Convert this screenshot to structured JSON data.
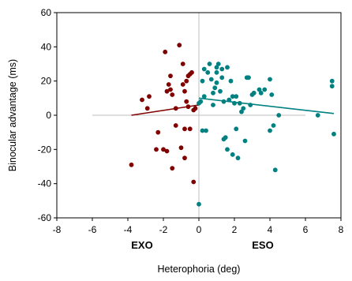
{
  "chart_data": {
    "type": "scatter",
    "title": "",
    "xlabel": "Heterophoria (deg)",
    "ylabel": "Binocular advantage (ms)",
    "xlim": [
      -8,
      8
    ],
    "ylim": [
      -60,
      60
    ],
    "xticks": [
      -8,
      -6,
      -4,
      -2,
      0,
      2,
      4,
      6,
      8
    ],
    "yticks": [
      -60,
      -40,
      -20,
      0,
      20,
      40,
      60
    ],
    "grid": false,
    "reference_lines": {
      "x": 0,
      "y": 0,
      "y_line_range": [
        -6,
        6
      ],
      "color": "#bfbfbf"
    },
    "annotations": [
      {
        "text": "EXO",
        "x": -3.2,
        "y": -78
      },
      {
        "text": "ESO",
        "x": 3.6,
        "y": -78
      }
    ],
    "series": [
      {
        "color": "#800000",
        "points": [
          [
            -3.8,
            -29
          ],
          [
            -3.2,
            9
          ],
          [
            -2.9,
            4
          ],
          [
            -2.8,
            11
          ],
          [
            -2.4,
            -20
          ],
          [
            -2.3,
            -10
          ],
          [
            -2.0,
            -20
          ],
          [
            -1.9,
            37
          ],
          [
            -1.8,
            -21
          ],
          [
            -1.8,
            14
          ],
          [
            -1.7,
            18
          ],
          [
            -1.6,
            15
          ],
          [
            -1.6,
            23
          ],
          [
            -1.5,
            12
          ],
          [
            -1.5,
            -31
          ],
          [
            -1.3,
            -6
          ],
          [
            -1.3,
            4
          ],
          [
            -1.1,
            41
          ],
          [
            -1.0,
            -19
          ],
          [
            -0.9,
            30
          ],
          [
            -0.9,
            18
          ],
          [
            -0.8,
            -25
          ],
          [
            -0.8,
            14
          ],
          [
            -0.8,
            -8
          ],
          [
            -0.7,
            20
          ],
          [
            -0.7,
            8
          ],
          [
            -0.6,
            5
          ],
          [
            -0.6,
            23
          ],
          [
            -0.5,
            -8
          ],
          [
            -0.5,
            24
          ],
          [
            -0.4,
            25
          ],
          [
            -0.3,
            3
          ],
          [
            -0.3,
            -39
          ],
          [
            -0.2,
            4
          ]
        ],
        "fit_line": [
          [
            -3.8,
            0
          ],
          [
            0,
            6
          ]
        ]
      },
      {
        "color": "#008080",
        "points": [
          [
            0.0,
            -52
          ],
          [
            0.0,
            7
          ],
          [
            0.1,
            8
          ],
          [
            0.2,
            20
          ],
          [
            0.2,
            -9
          ],
          [
            0.3,
            27
          ],
          [
            0.3,
            11
          ],
          [
            0.4,
            -9
          ],
          [
            0.5,
            25
          ],
          [
            0.6,
            30
          ],
          [
            0.7,
            21
          ],
          [
            0.8,
            13
          ],
          [
            0.8,
            6
          ],
          [
            0.9,
            16
          ],
          [
            1.0,
            28
          ],
          [
            1.0,
            19
          ],
          [
            1.0,
            25
          ],
          [
            1.1,
            30
          ],
          [
            1.2,
            14
          ],
          [
            1.3,
            22
          ],
          [
            1.3,
            27
          ],
          [
            1.4,
            8
          ],
          [
            1.4,
            -14
          ],
          [
            1.5,
            -13
          ],
          [
            1.6,
            28
          ],
          [
            1.6,
            -20
          ],
          [
            1.7,
            9
          ],
          [
            1.8,
            20
          ],
          [
            1.9,
            -23
          ],
          [
            1.9,
            11
          ],
          [
            2.0,
            7
          ],
          [
            2.1,
            11
          ],
          [
            2.1,
            -8
          ],
          [
            2.2,
            -25
          ],
          [
            2.3,
            7
          ],
          [
            2.4,
            2
          ],
          [
            2.5,
            4
          ],
          [
            2.6,
            -15
          ],
          [
            2.7,
            22
          ],
          [
            2.8,
            22
          ],
          [
            2.9,
            6
          ],
          [
            3.0,
            12
          ],
          [
            3.1,
            13
          ],
          [
            3.4,
            15
          ],
          [
            3.5,
            13
          ],
          [
            3.7,
            15
          ],
          [
            4.0,
            21
          ],
          [
            4.0,
            -9
          ],
          [
            4.1,
            12
          ],
          [
            4.2,
            -6
          ],
          [
            4.3,
            -32
          ],
          [
            4.5,
            0
          ],
          [
            6.7,
            0
          ],
          [
            7.5,
            20
          ],
          [
            7.5,
            17
          ],
          [
            7.6,
            -11
          ]
        ],
        "fit_line": [
          [
            0,
            10
          ],
          [
            7.6,
            1
          ]
        ]
      }
    ]
  }
}
